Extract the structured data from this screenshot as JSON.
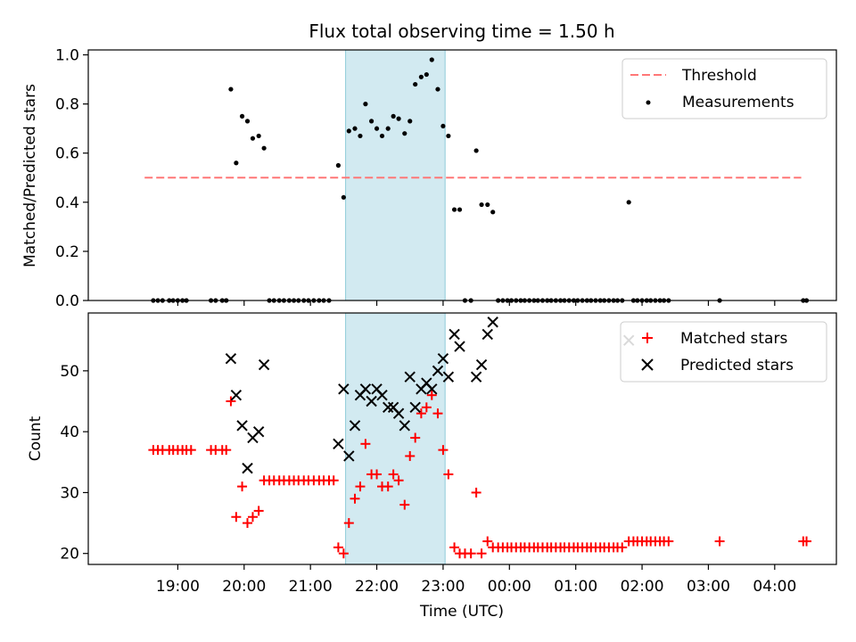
{
  "title": "Flux total observing time = 1.50 h",
  "chart_data": [
    {
      "type": "scatter",
      "ylabel": "Matched/Predicted stars",
      "xlabel": "",
      "ylim": [
        0,
        1.02
      ],
      "yticks": [
        0.0,
        0.2,
        0.4,
        0.6,
        0.8,
        1.0
      ],
      "ytick_labels": [
        "0.0",
        "0.2",
        "0.4",
        "0.6",
        "0.8",
        "1.0"
      ],
      "shaded_span_hours": [
        21.53,
        23.03
      ],
      "shade_color": "#add8e6",
      "legend_position": "top-right",
      "threshold": {
        "name": "Threshold",
        "y": 0.5,
        "x_range": [
          18.5,
          28.4
        ],
        "color": "#ff7777",
        "style": "dashed"
      },
      "series": [
        {
          "name": "Measurements",
          "color": "#000000",
          "marker": "dot",
          "points": [
            [
              18.63,
              0
            ],
            [
              18.7,
              0
            ],
            [
              18.77,
              0
            ],
            [
              18.87,
              0
            ],
            [
              18.93,
              0
            ],
            [
              19.0,
              0
            ],
            [
              19.07,
              0
            ],
            [
              19.13,
              0
            ],
            [
              19.5,
              0
            ],
            [
              19.57,
              0
            ],
            [
              19.67,
              0
            ],
            [
              19.73,
              0
            ],
            [
              19.8,
              0.86
            ],
            [
              19.88,
              0.56
            ],
            [
              19.97,
              0.75
            ],
            [
              20.05,
              0.73
            ],
            [
              20.13,
              0.66
            ],
            [
              20.22,
              0.67
            ],
            [
              20.3,
              0.62
            ],
            [
              20.38,
              0
            ],
            [
              20.45,
              0
            ],
            [
              20.53,
              0
            ],
            [
              20.6,
              0
            ],
            [
              20.68,
              0
            ],
            [
              20.75,
              0
            ],
            [
              20.82,
              0
            ],
            [
              20.9,
              0
            ],
            [
              20.97,
              0
            ],
            [
              21.05,
              0
            ],
            [
              21.13,
              0
            ],
            [
              21.2,
              0
            ],
            [
              21.28,
              0
            ],
            [
              21.42,
              0.55
            ],
            [
              21.5,
              0.42
            ],
            [
              21.58,
              0.69
            ],
            [
              21.67,
              0.7
            ],
            [
              21.75,
              0.67
            ],
            [
              21.83,
              0.8
            ],
            [
              21.92,
              0.73
            ],
            [
              22.0,
              0.7
            ],
            [
              22.08,
              0.67
            ],
            [
              22.17,
              0.7
            ],
            [
              22.25,
              0.75
            ],
            [
              22.33,
              0.74
            ],
            [
              22.42,
              0.68
            ],
            [
              22.5,
              0.73
            ],
            [
              22.58,
              0.88
            ],
            [
              22.67,
              0.91
            ],
            [
              22.75,
              0.92
            ],
            [
              22.83,
              0.98
            ],
            [
              22.92,
              0.86
            ],
            [
              23.0,
              0.71
            ],
            [
              23.08,
              0.67
            ],
            [
              23.17,
              0.37
            ],
            [
              23.25,
              0.37
            ],
            [
              23.33,
              0
            ],
            [
              23.42,
              0
            ],
            [
              23.5,
              0.61
            ],
            [
              23.58,
              0.39
            ],
            [
              23.67,
              0.39
            ],
            [
              23.75,
              0.36
            ],
            [
              23.83,
              0
            ],
            [
              23.9,
              0
            ],
            [
              23.97,
              0
            ],
            [
              24.03,
              0
            ],
            [
              24.1,
              0
            ],
            [
              24.17,
              0
            ],
            [
              24.23,
              0
            ],
            [
              24.3,
              0
            ],
            [
              24.37,
              0
            ],
            [
              24.43,
              0
            ],
            [
              24.5,
              0
            ],
            [
              24.57,
              0
            ],
            [
              24.63,
              0
            ],
            [
              24.7,
              0
            ],
            [
              24.77,
              0
            ],
            [
              24.83,
              0
            ],
            [
              24.9,
              0
            ],
            [
              24.97,
              0
            ],
            [
              25.03,
              0
            ],
            [
              25.1,
              0
            ],
            [
              25.17,
              0
            ],
            [
              25.23,
              0
            ],
            [
              25.3,
              0
            ],
            [
              25.37,
              0
            ],
            [
              25.43,
              0
            ],
            [
              25.5,
              0
            ],
            [
              25.57,
              0
            ],
            [
              25.63,
              0
            ],
            [
              25.7,
              0
            ],
            [
              25.8,
              0.4
            ],
            [
              25.87,
              0
            ],
            [
              25.93,
              0
            ],
            [
              26.0,
              0
            ],
            [
              26.07,
              0
            ],
            [
              26.13,
              0
            ],
            [
              26.2,
              0
            ],
            [
              26.27,
              0
            ],
            [
              26.33,
              0
            ],
            [
              26.4,
              0
            ],
            [
              27.17,
              0
            ],
            [
              28.43,
              0
            ],
            [
              28.48,
              0
            ]
          ]
        }
      ]
    },
    {
      "type": "scatter",
      "ylabel": "Count",
      "xlabel": "Time (UTC)",
      "ylim": [
        18.2,
        59.5
      ],
      "yticks": [
        20,
        30,
        40,
        50
      ],
      "ytick_labels": [
        "20",
        "30",
        "40",
        "50"
      ],
      "xlim": [
        17.65,
        28.93
      ],
      "xticks": [
        19,
        20,
        21,
        22,
        23,
        24,
        25,
        26,
        27,
        28
      ],
      "xtick_labels": [
        "19:00",
        "20:00",
        "21:00",
        "22:00",
        "23:00",
        "00:00",
        "01:00",
        "02:00",
        "03:00",
        "04:00"
      ],
      "shaded_span_hours": [
        21.53,
        23.03
      ],
      "legend_position": "top-right",
      "series": [
        {
          "name": "Matched stars",
          "color": "#ff0000",
          "marker": "plus",
          "points": [
            [
              18.63,
              37
            ],
            [
              18.7,
              37
            ],
            [
              18.77,
              37
            ],
            [
              18.87,
              37
            ],
            [
              18.93,
              37
            ],
            [
              19.0,
              37
            ],
            [
              19.07,
              37
            ],
            [
              19.13,
              37
            ],
            [
              19.2,
              37
            ],
            [
              19.5,
              37
            ],
            [
              19.57,
              37
            ],
            [
              19.67,
              37
            ],
            [
              19.73,
              37
            ],
            [
              19.8,
              45
            ],
            [
              19.88,
              26
            ],
            [
              19.97,
              31
            ],
            [
              20.05,
              25
            ],
            [
              20.13,
              26
            ],
            [
              20.22,
              27
            ],
            [
              20.3,
              32
            ],
            [
              20.38,
              32
            ],
            [
              20.45,
              32
            ],
            [
              20.53,
              32
            ],
            [
              20.6,
              32
            ],
            [
              20.68,
              32
            ],
            [
              20.75,
              32
            ],
            [
              20.82,
              32
            ],
            [
              20.9,
              32
            ],
            [
              20.97,
              32
            ],
            [
              21.05,
              32
            ],
            [
              21.13,
              32
            ],
            [
              21.2,
              32
            ],
            [
              21.28,
              32
            ],
            [
              21.35,
              32
            ],
            [
              21.42,
              21
            ],
            [
              21.5,
              20
            ],
            [
              21.58,
              25
            ],
            [
              21.67,
              29
            ],
            [
              21.75,
              31
            ],
            [
              21.83,
              38
            ],
            [
              21.92,
              33
            ],
            [
              22.0,
              33
            ],
            [
              22.08,
              31
            ],
            [
              22.17,
              31
            ],
            [
              22.25,
              33
            ],
            [
              22.33,
              32
            ],
            [
              22.42,
              28
            ],
            [
              22.5,
              36
            ],
            [
              22.58,
              39
            ],
            [
              22.67,
              43
            ],
            [
              22.75,
              44
            ],
            [
              22.83,
              46
            ],
            [
              22.92,
              43
            ],
            [
              23.0,
              37
            ],
            [
              23.08,
              33
            ],
            [
              23.17,
              21
            ],
            [
              23.25,
              20
            ],
            [
              23.33,
              20
            ],
            [
              23.42,
              20
            ],
            [
              23.5,
              30
            ],
            [
              23.58,
              20
            ],
            [
              23.67,
              22
            ],
            [
              23.75,
              21
            ],
            [
              23.83,
              21
            ],
            [
              23.9,
              21
            ],
            [
              23.97,
              21
            ],
            [
              24.03,
              21
            ],
            [
              24.1,
              21
            ],
            [
              24.17,
              21
            ],
            [
              24.23,
              21
            ],
            [
              24.3,
              21
            ],
            [
              24.37,
              21
            ],
            [
              24.43,
              21
            ],
            [
              24.5,
              21
            ],
            [
              24.57,
              21
            ],
            [
              24.63,
              21
            ],
            [
              24.7,
              21
            ],
            [
              24.77,
              21
            ],
            [
              24.83,
              21
            ],
            [
              24.9,
              21
            ],
            [
              24.97,
              21
            ],
            [
              25.03,
              21
            ],
            [
              25.1,
              21
            ],
            [
              25.17,
              21
            ],
            [
              25.23,
              21
            ],
            [
              25.3,
              21
            ],
            [
              25.37,
              21
            ],
            [
              25.43,
              21
            ],
            [
              25.5,
              21
            ],
            [
              25.57,
              21
            ],
            [
              25.63,
              21
            ],
            [
              25.7,
              21
            ],
            [
              25.8,
              22
            ],
            [
              25.87,
              22
            ],
            [
              25.93,
              22
            ],
            [
              26.0,
              22
            ],
            [
              26.07,
              22
            ],
            [
              26.13,
              22
            ],
            [
              26.2,
              22
            ],
            [
              26.27,
              22
            ],
            [
              26.33,
              22
            ],
            [
              26.4,
              22
            ],
            [
              27.17,
              22
            ],
            [
              28.43,
              22
            ],
            [
              28.48,
              22
            ]
          ]
        },
        {
          "name": "Predicted stars",
          "color": "#000000",
          "marker": "x",
          "points": [
            [
              19.8,
              52
            ],
            [
              19.88,
              46
            ],
            [
              19.97,
              41
            ],
            [
              20.05,
              34
            ],
            [
              20.13,
              39
            ],
            [
              20.22,
              40
            ],
            [
              20.3,
              51
            ],
            [
              21.42,
              38
            ],
            [
              21.5,
              47
            ],
            [
              21.58,
              36
            ],
            [
              21.67,
              41
            ],
            [
              21.75,
              46
            ],
            [
              21.83,
              47
            ],
            [
              21.92,
              45
            ],
            [
              22.0,
              47
            ],
            [
              22.08,
              46
            ],
            [
              22.17,
              44
            ],
            [
              22.25,
              44
            ],
            [
              22.33,
              43
            ],
            [
              22.42,
              41
            ],
            [
              22.5,
              49
            ],
            [
              22.58,
              44
            ],
            [
              22.67,
              47
            ],
            [
              22.75,
              48
            ],
            [
              22.83,
              47
            ],
            [
              22.92,
              50
            ],
            [
              23.0,
              52
            ],
            [
              23.08,
              49
            ],
            [
              23.17,
              56
            ],
            [
              23.25,
              54
            ],
            [
              23.5,
              49
            ],
            [
              23.58,
              51
            ],
            [
              23.67,
              56
            ],
            [
              23.75,
              58
            ],
            [
              25.8,
              55
            ]
          ]
        }
      ]
    }
  ]
}
